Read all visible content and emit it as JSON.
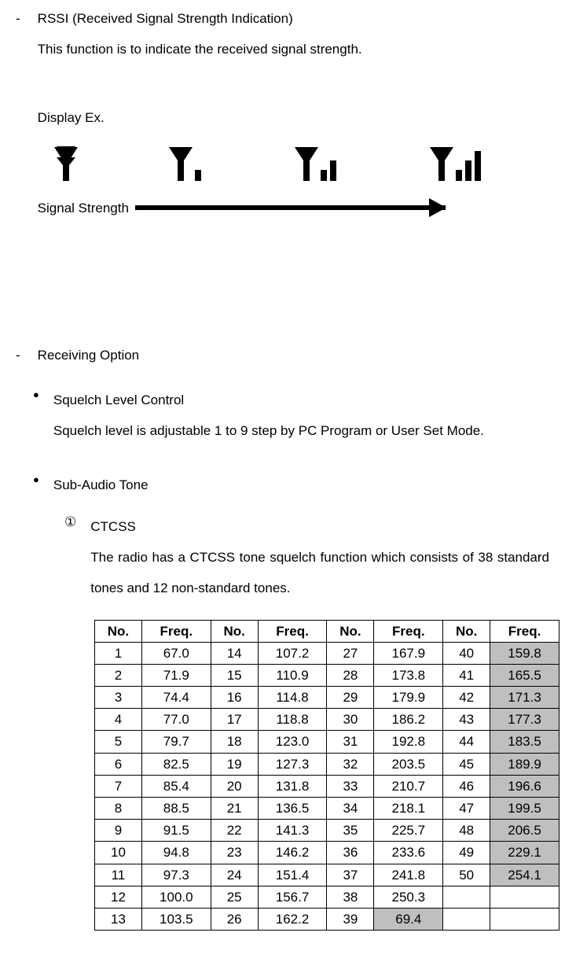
{
  "section1": {
    "dash": "-",
    "title": "RSSI (Received Signal Strength Indication)",
    "desc": "This function is to indicate the received signal strength.",
    "display_ex": "Display Ex.",
    "signal_strength": "Signal Strength"
  },
  "section2": {
    "dash": "-",
    "title": "Receiving Option"
  },
  "sub1": {
    "bullet": "●",
    "title": "Squelch Level Control",
    "desc": "Squelch level is adjustable 1 to 9 step by PC Program or User Set Mode."
  },
  "sub2": {
    "bullet": "●",
    "title": "Sub-Audio Tone"
  },
  "ctcss": {
    "num": "①",
    "title": "CTCSS",
    "desc": "The radio has a CTCSS tone squelch function which consists of 38 standard tones and 12 non-standard tones."
  },
  "table": {
    "headers": [
      "No.",
      "Freq.",
      "No.",
      "Freq.",
      "No.",
      "Freq.",
      "No.",
      "Freq."
    ],
    "rows": [
      [
        {
          "v": "1"
        },
        {
          "v": "67.0"
        },
        {
          "v": "14"
        },
        {
          "v": "107.2"
        },
        {
          "v": "27"
        },
        {
          "v": "167.9"
        },
        {
          "v": "40"
        },
        {
          "v": "159.8",
          "s": true
        }
      ],
      [
        {
          "v": "2"
        },
        {
          "v": "71.9"
        },
        {
          "v": "15"
        },
        {
          "v": "110.9"
        },
        {
          "v": "28"
        },
        {
          "v": "173.8"
        },
        {
          "v": "41"
        },
        {
          "v": "165.5",
          "s": true
        }
      ],
      [
        {
          "v": "3"
        },
        {
          "v": "74.4"
        },
        {
          "v": "16"
        },
        {
          "v": "114.8"
        },
        {
          "v": "29"
        },
        {
          "v": "179.9"
        },
        {
          "v": "42"
        },
        {
          "v": "171.3",
          "s": true
        }
      ],
      [
        {
          "v": "4"
        },
        {
          "v": "77.0"
        },
        {
          "v": "17"
        },
        {
          "v": "118.8"
        },
        {
          "v": "30"
        },
        {
          "v": "186.2"
        },
        {
          "v": "43"
        },
        {
          "v": "177.3",
          "s": true
        }
      ],
      [
        {
          "v": "5"
        },
        {
          "v": "79.7"
        },
        {
          "v": "18"
        },
        {
          "v": "123.0"
        },
        {
          "v": "31"
        },
        {
          "v": "192.8"
        },
        {
          "v": "44"
        },
        {
          "v": "183.5",
          "s": true
        }
      ],
      [
        {
          "v": "6"
        },
        {
          "v": "82.5"
        },
        {
          "v": "19"
        },
        {
          "v": "127.3"
        },
        {
          "v": "32"
        },
        {
          "v": "203.5"
        },
        {
          "v": "45"
        },
        {
          "v": "189.9",
          "s": true
        }
      ],
      [
        {
          "v": "7"
        },
        {
          "v": "85.4"
        },
        {
          "v": "20"
        },
        {
          "v": "131.8"
        },
        {
          "v": "33"
        },
        {
          "v": "210.7"
        },
        {
          "v": "46"
        },
        {
          "v": "196.6",
          "s": true
        }
      ],
      [
        {
          "v": "8"
        },
        {
          "v": "88.5"
        },
        {
          "v": "21"
        },
        {
          "v": "136.5"
        },
        {
          "v": "34"
        },
        {
          "v": "218.1"
        },
        {
          "v": "47"
        },
        {
          "v": "199.5",
          "s": true
        }
      ],
      [
        {
          "v": "9"
        },
        {
          "v": "91.5"
        },
        {
          "v": "22"
        },
        {
          "v": "141.3"
        },
        {
          "v": "35"
        },
        {
          "v": "225.7"
        },
        {
          "v": "48"
        },
        {
          "v": "206.5",
          "s": true
        }
      ],
      [
        {
          "v": "10"
        },
        {
          "v": "94.8"
        },
        {
          "v": "23"
        },
        {
          "v": "146.2"
        },
        {
          "v": "36"
        },
        {
          "v": "233.6"
        },
        {
          "v": "49"
        },
        {
          "v": "229.1",
          "s": true
        }
      ],
      [
        {
          "v": "11"
        },
        {
          "v": "97.3"
        },
        {
          "v": "24"
        },
        {
          "v": "151.4"
        },
        {
          "v": "37"
        },
        {
          "v": "241.8"
        },
        {
          "v": "50"
        },
        {
          "v": "254.1",
          "s": true
        }
      ],
      [
        {
          "v": "12"
        },
        {
          "v": "100.0"
        },
        {
          "v": "25"
        },
        {
          "v": "156.7"
        },
        {
          "v": "38"
        },
        {
          "v": "250.3"
        },
        {
          "v": ""
        },
        {
          "v": ""
        }
      ],
      [
        {
          "v": "13"
        },
        {
          "v": "103.5"
        },
        {
          "v": "26"
        },
        {
          "v": "162.2"
        },
        {
          "v": "39"
        },
        {
          "v": "69.4",
          "s": true
        },
        {
          "v": ""
        },
        {
          "v": ""
        }
      ]
    ]
  }
}
